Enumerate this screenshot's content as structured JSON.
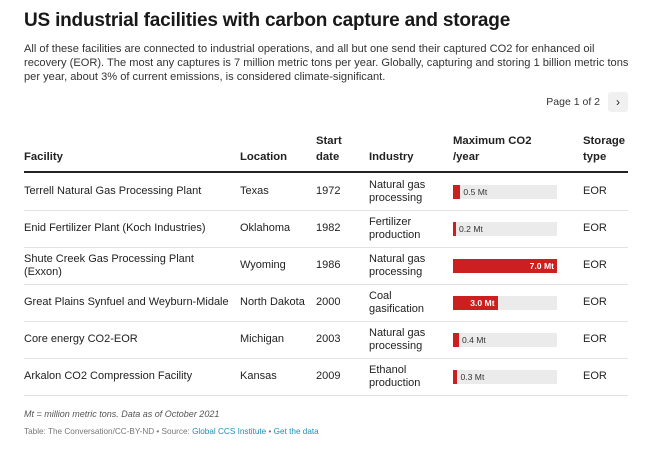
{
  "title": "US industrial facilities with carbon capture and storage",
  "description": "All of these facilities are connected to industrial operations, and all but one send their captured CO2 for enhanced oil recovery (EOR). The most any captures is 7 million metric tons per year. Globally, capturing and storing 1 billion metric tons per year, about 3% of current emissions, is considered climate-significant.",
  "pager": {
    "label": "Page 1 of 2",
    "next_icon": "chevron-right-icon",
    "next_symbol": "›"
  },
  "columns": {
    "facility": "Facility",
    "location": "Location",
    "start_date": "Start date",
    "industry": "Industry",
    "max_co2": "Maximum CO2 /year",
    "storage": "Storage type"
  },
  "colors": {
    "bar": "#cc1f1f",
    "track": "#ebebeb",
    "link": "#1a8fb5"
  },
  "chart_data": {
    "type": "table",
    "title": "US industrial facilities with carbon capture and storage",
    "value_unit": "Mt",
    "value_max": 7.0,
    "rows": [
      {
        "facility": "Terrell Natural Gas Processing Plant",
        "location": "Texas",
        "start": "1972",
        "industry": "Natural gas processing",
        "value": 0.5,
        "label": "0.5 Mt",
        "storage": "EOR"
      },
      {
        "facility": "Enid Fertilizer Plant (Koch Industries)",
        "location": "Oklahoma",
        "start": "1982",
        "industry": "Fertilizer production",
        "value": 0.2,
        "label": "0.2 Mt",
        "storage": "EOR"
      },
      {
        "facility": "Shute Creek Gas Processing Plant (Exxon)",
        "location": "Wyoming",
        "start": "1986",
        "industry": "Natural gas processing",
        "value": 7.0,
        "label": "7.0 Mt",
        "storage": "EOR"
      },
      {
        "facility": "Great Plains Synfuel and Weyburn-Midale",
        "location": "North Dakota",
        "start": "2000",
        "industry": "Coal gasification",
        "value": 3.0,
        "label": "3.0 Mt",
        "storage": "EOR"
      },
      {
        "facility": "Core energy CO2-EOR",
        "location": "Michigan",
        "start": "2003",
        "industry": "Natural gas processing",
        "value": 0.4,
        "label": "0.4 Mt",
        "storage": "EOR"
      },
      {
        "facility": "Arkalon CO2 Compression Facility",
        "location": "Kansas",
        "start": "2009",
        "industry": "Ethanol production",
        "value": 0.3,
        "label": "0.3 Mt",
        "storage": "EOR"
      }
    ]
  },
  "footnote": "Mt = million metric tons. Data as of October 2021",
  "source": {
    "prefix": "Table: The Conversation/CC-BY-ND • Source: ",
    "link1": "Global CCS Institute",
    "separator": " • ",
    "link2": "Get the data"
  }
}
